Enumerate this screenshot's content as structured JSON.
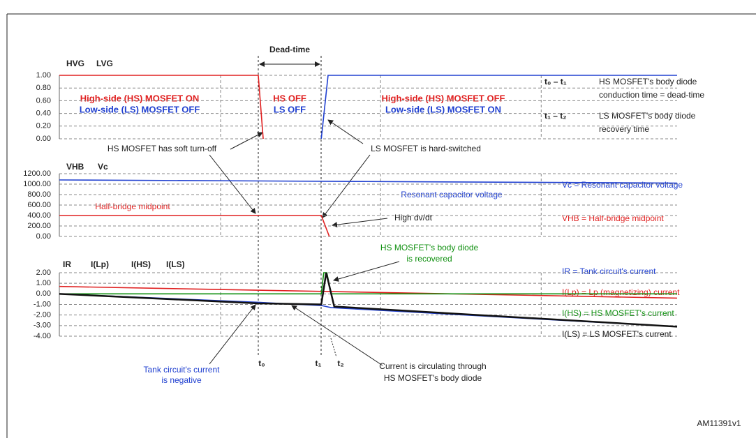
{
  "chart_data": [
    {
      "type": "line",
      "xlim": [
        0,
        100
      ],
      "ylim": [
        0,
        1
      ],
      "yticks": [
        {
          "value": 0,
          "label": "0.00"
        },
        {
          "value": 0.2,
          "label": "0.20"
        },
        {
          "value": 0.4,
          "label": "0.40"
        },
        {
          "value": 0.6,
          "label": "0.60"
        },
        {
          "value": 0.8,
          "label": "0.80"
        },
        {
          "value": 1,
          "label": "1.00"
        }
      ],
      "grid": true,
      "series": [
        {
          "name": "HVG",
          "color": "#e02020",
          "x": [
            0,
            32.2,
            33.0
          ],
          "values": [
            1,
            1,
            0
          ]
        },
        {
          "name": "LVG",
          "color": "#2040d0",
          "x": [
            42.4,
            43.5,
            100
          ],
          "values": [
            0,
            1,
            1
          ]
        }
      ]
    },
    {
      "type": "line",
      "xlim": [
        0,
        100
      ],
      "ylim": [
        0,
        1200
      ],
      "yticks": [
        {
          "value": 0,
          "label": "0.00"
        },
        {
          "value": 200,
          "label": "200.00"
        },
        {
          "value": 400,
          "label": "400.00"
        },
        {
          "value": 600,
          "label": "600.00"
        },
        {
          "value": 800,
          "label": "800.00"
        },
        {
          "value": 1000,
          "label": "1000.00"
        },
        {
          "value": 1200,
          "label": "1200.00"
        }
      ],
      "grid": true,
      "series": [
        {
          "name": "VHB",
          "color": "#e02020",
          "x": [
            0,
            42.4,
            43.7
          ],
          "values": [
            400,
            400,
            0
          ]
        },
        {
          "name": "Vc",
          "color": "#2040d0",
          "x": [
            0,
            50,
            100
          ],
          "values": [
            1080,
            1050,
            1020
          ]
        }
      ]
    },
    {
      "type": "line",
      "xlim": [
        0,
        100
      ],
      "ylim": [
        -4,
        2
      ],
      "yticks": [
        {
          "value": -4,
          "label": "-4.00"
        },
        {
          "value": -3,
          "label": "-3.00"
        },
        {
          "value": -2,
          "label": "-2.00"
        },
        {
          "value": -1,
          "label": "-1.00"
        },
        {
          "value": 0,
          "label": "0.00"
        },
        {
          "value": 1,
          "label": "1.00"
        },
        {
          "value": 2,
          "label": "2.00"
        }
      ],
      "grid": true,
      "series": [
        {
          "name": "IR",
          "color": "#2040d0",
          "x": [
            0,
            32.2,
            42.4,
            44,
            100
          ],
          "values": [
            0,
            -0.8,
            -1.1,
            -1.3,
            -3.1
          ]
        },
        {
          "name": "I(Lp)",
          "color": "#e02020",
          "x": [
            0,
            100
          ],
          "values": [
            0.7,
            -0.4
          ]
        },
        {
          "name": "I(HS)",
          "color": "#109010",
          "x": [
            0,
            42.4,
            42.8,
            43.3,
            44,
            100
          ],
          "values": [
            0,
            0,
            2,
            2,
            0,
            0
          ]
        },
        {
          "name": "I(LS)",
          "color": "#111111",
          "x": [
            0,
            32.2,
            42.4,
            43.2,
            44.5,
            100
          ],
          "values": [
            0,
            -0.9,
            -1.0,
            2,
            -1.2,
            -3.1
          ]
        }
      ]
    }
  ],
  "annotations": [
    "Dead-time",
    "High-side (HS) MOSFET ON",
    "Low-side (LS) MOSFET OFF",
    "HS OFF",
    "LS OFF",
    "High-side (HS) MOSFET OFF",
    "Low-side (LS) MOSFET ON",
    "HS MOSFET has soft turn-off",
    "LS MOSFET is hard-switched",
    "Half-bridge midpoint",
    "Resonant capacitor voltage",
    "High dv/dt",
    "HS MOSFET's body diode",
    "is recovered",
    "Tank circuit's current",
    "is negative",
    "Current is circulating through",
    "HS MOSFET's body diode",
    "t₀",
    "t₁",
    "t₂"
  ],
  "notes": [
    "t₀ – t₁",
    "HS MOSFET's body diode",
    "conduction time = dead-time",
    "t₁ – t₂",
    "LS MOSFET's body diode",
    "recovery time",
    "Vc = Resonant capacitor voltage",
    "VHB = Half-bridge midpoint",
    "IR = Tank circuit's current",
    "I(Lp) = Lp (magnetizing) current",
    "I(HS) = HS MOSFET's current",
    "I(LS) = LS MOSFET's current"
  ],
  "figure_code": "AM11391v1"
}
